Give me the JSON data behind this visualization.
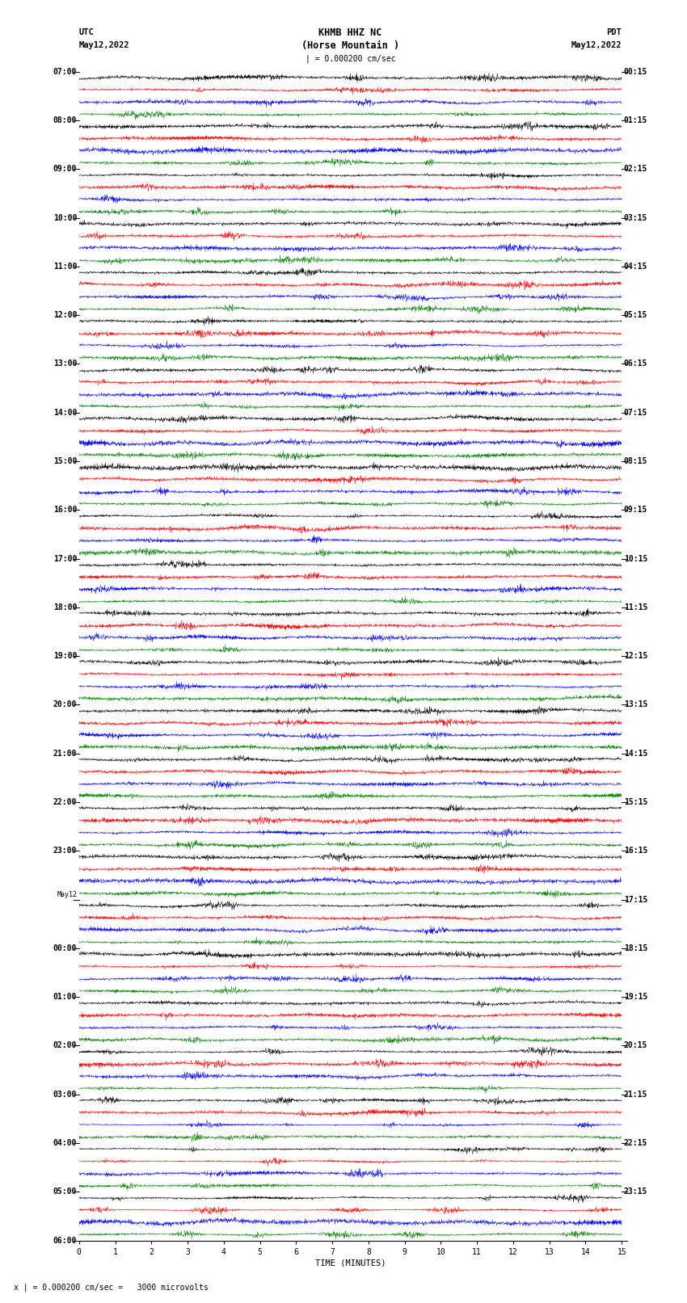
{
  "title_line1": "KHMB HHZ NC",
  "title_line2": "(Horse Mountain )",
  "title_line3": "| = 0.000200 cm/sec",
  "left_header_line1": "UTC",
  "left_header_line2": "May12,2022",
  "right_header_line1": "PDT",
  "right_header_line2": "May12,2022",
  "xlabel": "TIME (MINUTES)",
  "footer": "x | = 0.000200 cm/sec =   3000 microvolts",
  "utc_times": [
    "07:00",
    "08:00",
    "09:00",
    "10:00",
    "11:00",
    "12:00",
    "13:00",
    "14:00",
    "15:00",
    "16:00",
    "17:00",
    "18:00",
    "19:00",
    "20:00",
    "21:00",
    "22:00",
    "23:00",
    "May12",
    "00:00",
    "01:00",
    "02:00",
    "03:00",
    "04:00",
    "05:00",
    "06:00"
  ],
  "pdt_times": [
    "00:15",
    "01:15",
    "02:15",
    "03:15",
    "04:15",
    "05:15",
    "06:15",
    "07:15",
    "08:15",
    "09:15",
    "10:15",
    "11:15",
    "12:15",
    "13:15",
    "14:15",
    "15:15",
    "16:15",
    "17:15",
    "18:15",
    "19:15",
    "20:15",
    "21:15",
    "22:15",
    "23:15"
  ],
  "colors": [
    "black",
    "red",
    "blue",
    "green"
  ],
  "num_hours": 24,
  "traces_per_hour": 4,
  "time_minutes": 15,
  "fig_width": 8.5,
  "fig_height": 16.13,
  "dpi": 100,
  "bg_color": "white",
  "x_ticks": [
    0,
    1,
    2,
    3,
    4,
    5,
    6,
    7,
    8,
    9,
    10,
    11,
    12,
    13,
    14,
    15
  ],
  "x_tick_labels": [
    "0",
    "1",
    "2",
    "3",
    "4",
    "5",
    "6",
    "7",
    "8",
    "9",
    "10",
    "11",
    "12",
    "13",
    "14",
    "15"
  ]
}
